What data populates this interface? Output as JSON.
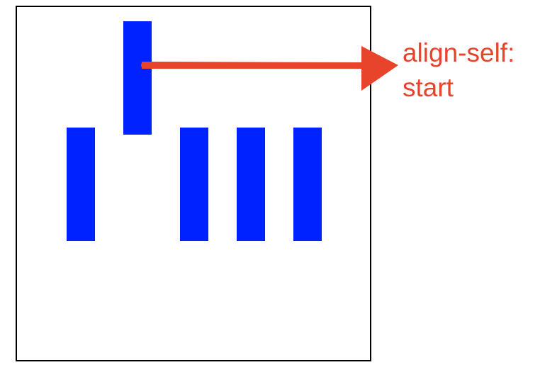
{
  "diagram": {
    "item_color": "#0022ff",
    "annotation_color": "#e8432b",
    "border_color": "#000000",
    "items": [
      {
        "id": "item-1",
        "align_self": "default"
      },
      {
        "id": "item-2",
        "align_self": "start"
      },
      {
        "id": "item-3",
        "align_self": "default"
      },
      {
        "id": "item-4",
        "align_self": "default"
      },
      {
        "id": "item-5",
        "align_self": "default"
      }
    ],
    "annotation": {
      "line1": "align-self:",
      "line2": "start"
    }
  }
}
